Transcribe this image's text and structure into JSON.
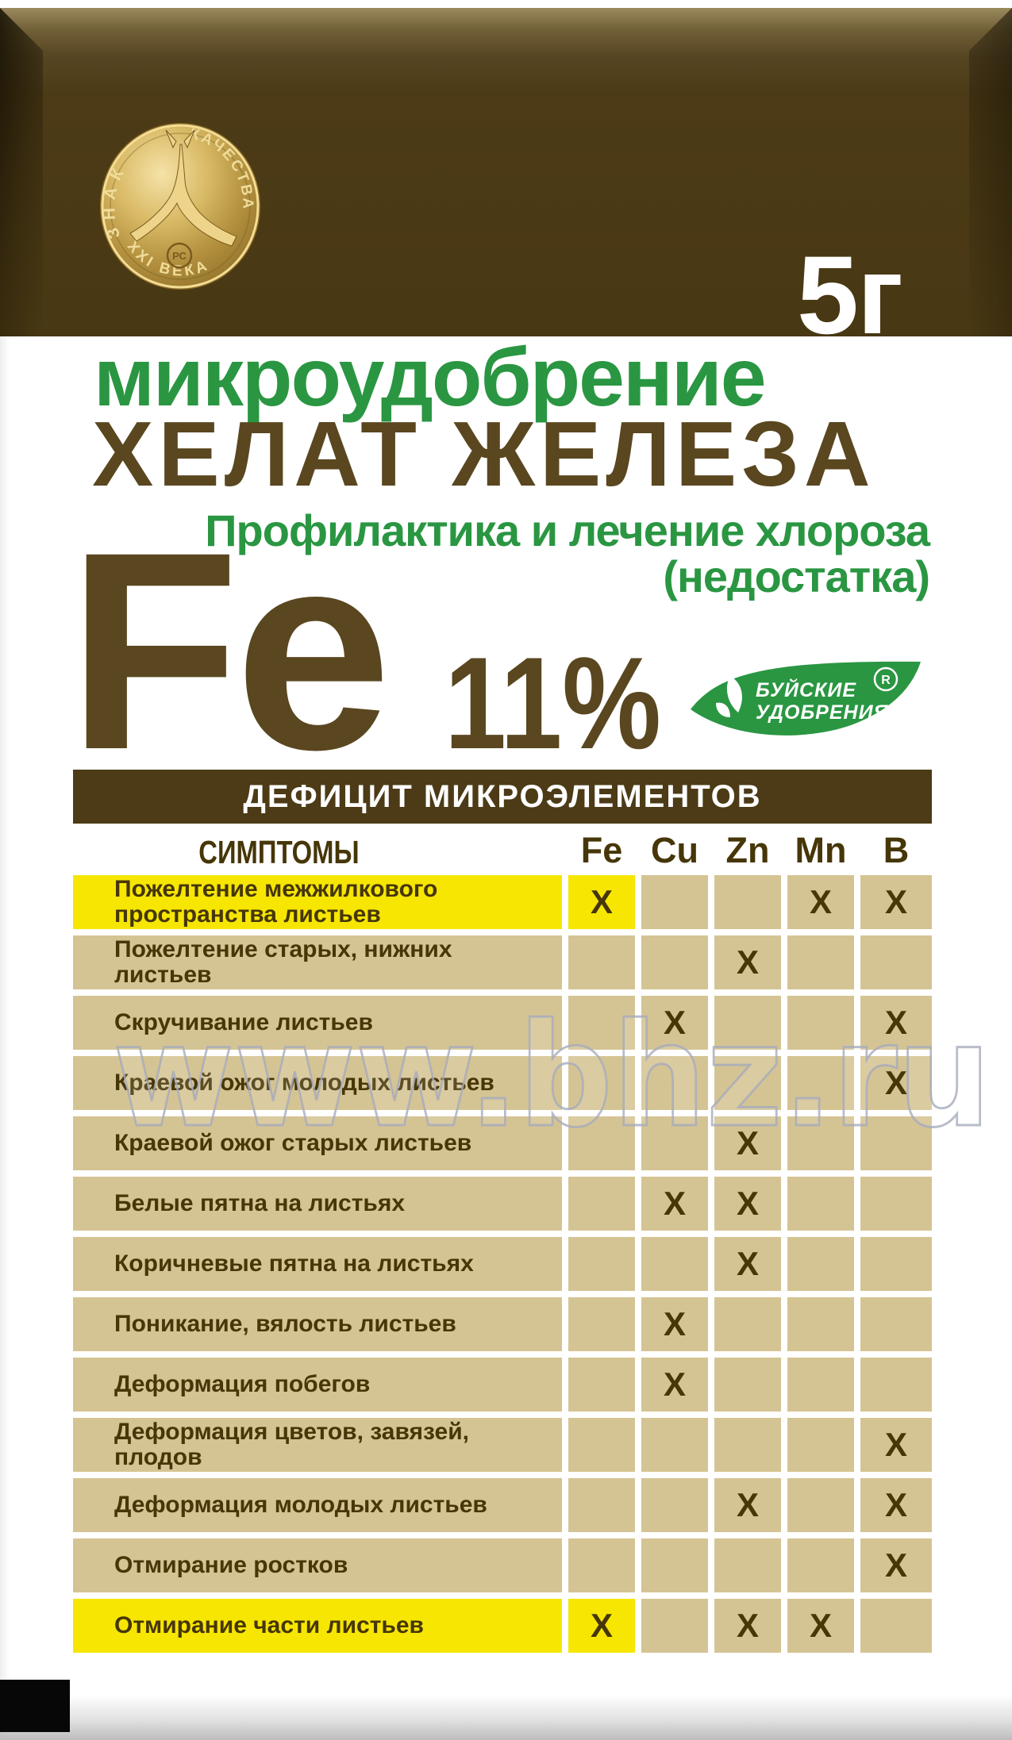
{
  "package": {
    "weight": "5г",
    "medallion": {
      "arc_left": "ЗНАК",
      "arc_right": "КАЧЕСТВА",
      "arc_bottom": "XXI ВЕКА",
      "center_mark": "РС"
    }
  },
  "title": {
    "category": "микроудобрение",
    "product": "ХЕЛАТ ЖЕЛЕЗА",
    "subtitle_line1": "Профилактика и лечение хлороза",
    "subtitle_line2": "(недостатка)",
    "element_symbol": "Fe",
    "element_percent": "11%"
  },
  "brand": {
    "name_line1": "БУЙСКИЕ",
    "name_line2": "УДОБРЕНИЯ",
    "registered_letter": "R"
  },
  "table": {
    "header": "ДЕФИЦИТ МИКРОЭЛЕМЕНТОВ",
    "symptoms_label": "СИМПТОМЫ",
    "elements": [
      "Fe",
      "Cu",
      "Zn",
      "Mn",
      "B"
    ],
    "mark_symbol": "X",
    "rows": [
      {
        "symptom": "Пожелтение межжилкового пространства листьев",
        "highlight": true,
        "marks": [
          "Fe",
          "Mn",
          "B"
        ]
      },
      {
        "symptom": "Пожелтение старых, нижних листьев",
        "highlight": false,
        "marks": [
          "Zn"
        ]
      },
      {
        "symptom": "Скручивание листьев",
        "highlight": false,
        "marks": [
          "Cu",
          "B"
        ]
      },
      {
        "symptom": "Краевой ожог молодых листьев",
        "highlight": false,
        "marks": [
          "B"
        ]
      },
      {
        "symptom": "Краевой ожог старых листьев",
        "highlight": false,
        "marks": [
          "Zn"
        ]
      },
      {
        "symptom": "Белые пятна на листьях",
        "highlight": false,
        "marks": [
          "Cu",
          "Zn"
        ]
      },
      {
        "symptom": "Коричневые пятна на листьях",
        "highlight": false,
        "marks": [
          "Zn"
        ]
      },
      {
        "symptom": "Поникание, вялость листьев",
        "highlight": false,
        "marks": [
          "Cu"
        ]
      },
      {
        "symptom": "Деформация побегов",
        "highlight": false,
        "marks": [
          "Cu"
        ]
      },
      {
        "symptom": "Деформация цветов, завязей, плодов",
        "highlight": false,
        "marks": [
          "B"
        ]
      },
      {
        "symptom": "Деформация молодых листьев",
        "highlight": false,
        "marks": [
          "Zn",
          "B"
        ]
      },
      {
        "symptom": "Отмирание ростков",
        "highlight": false,
        "marks": [
          "B"
        ]
      },
      {
        "symptom": "Отмирание части листьев",
        "highlight": true,
        "marks": [
          "Fe",
          "Zn",
          "Mn"
        ]
      }
    ]
  },
  "watermark": "www.bhz.ru",
  "colors": {
    "green": "#2a9642",
    "title_brown": "#5a4720",
    "panel_brown": "#4c3b16",
    "tan": "#d5c493",
    "yellow": "#f6e602",
    "text_brown": "#463608",
    "gold_light": "#f2dc96",
    "gold_dark": "#8a6b26",
    "watermark_stroke": "#a6abbd"
  }
}
